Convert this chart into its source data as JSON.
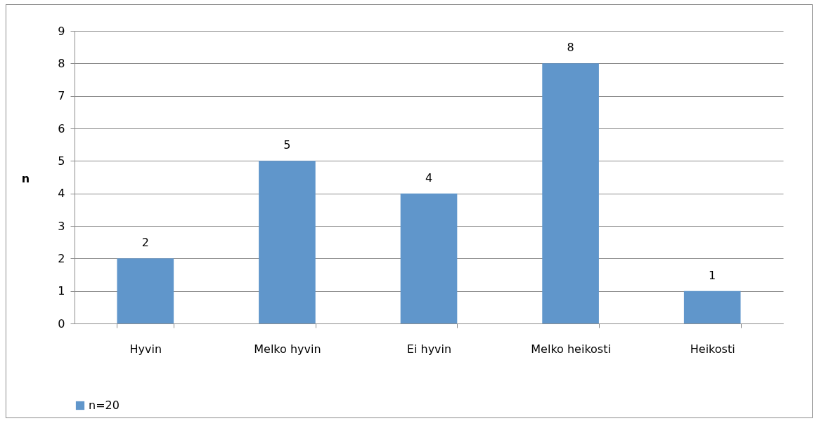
{
  "chart_data": {
    "type": "bar",
    "ylabel": "n",
    "categories": [
      "Hyvin",
      "Melko hyvin",
      "Ei hyvin",
      "Melko heikosti",
      "Heikosti"
    ],
    "series": [
      {
        "name": "n=20",
        "color": "#6096cb",
        "values": [
          2,
          5,
          4,
          8,
          1
        ]
      }
    ],
    "ylim": [
      0,
      9
    ],
    "yticks": [
      0,
      1,
      2,
      3,
      4,
      5,
      6,
      7,
      8,
      9
    ],
    "grid": "y",
    "legend": "bottom",
    "data_labels": true
  }
}
